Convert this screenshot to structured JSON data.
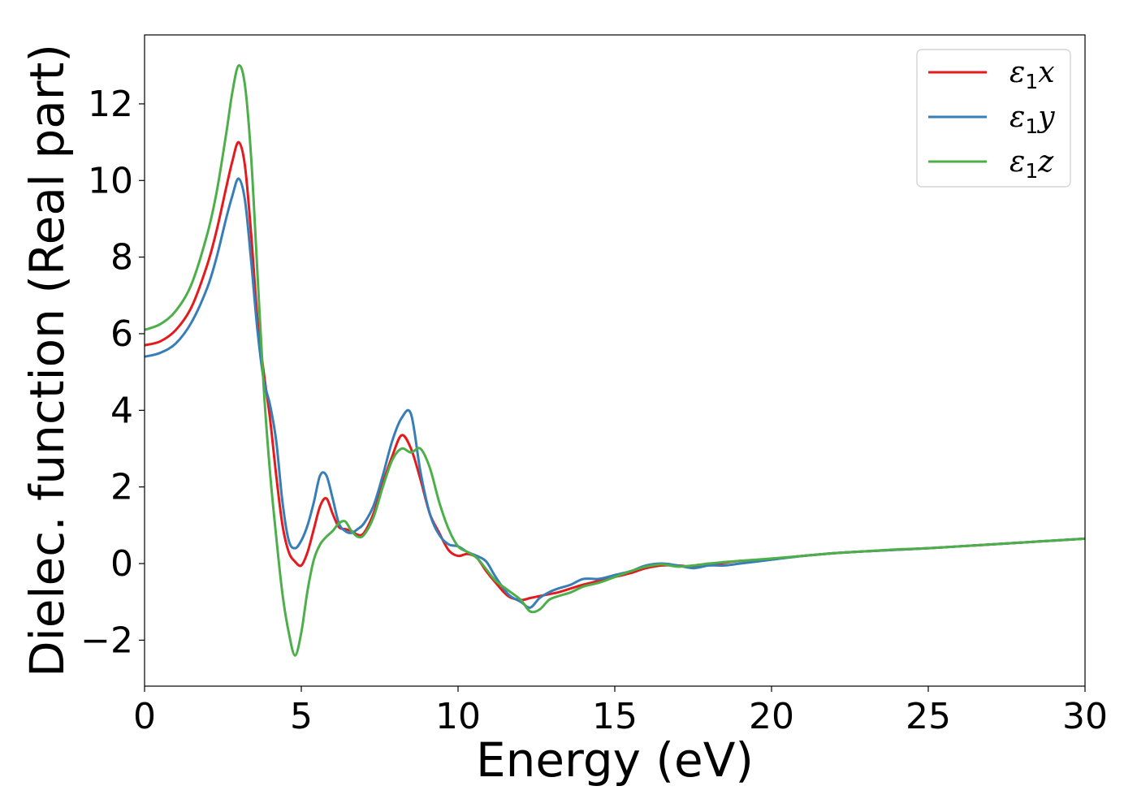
{
  "chart_data": {
    "type": "line",
    "title": "",
    "xlabel": "Energy (eV)",
    "ylabel": "Dielec. function (Real part)",
    "xlim": [
      0,
      30
    ],
    "ylim": [
      -3.2,
      13.8
    ],
    "xticks": [
      0,
      5,
      10,
      15,
      20,
      25,
      30
    ],
    "xtick_labels": [
      "0",
      "5",
      "10",
      "15",
      "20",
      "25",
      "30"
    ],
    "yticks": [
      -2,
      0,
      2,
      4,
      6,
      8,
      10,
      12
    ],
    "ytick_labels": [
      "−2",
      "0",
      "2",
      "4",
      "6",
      "8",
      "10",
      "12"
    ],
    "grid": false,
    "legend_position": "top-right",
    "series": [
      {
        "name": "ε1x",
        "legend_symbol": "ε",
        "legend_subscript": "1",
        "legend_suffix": "x",
        "color": "#e41a1c",
        "x": [
          0,
          0.5,
          1.0,
          1.5,
          2.0,
          2.3,
          2.6,
          2.8,
          3.0,
          3.2,
          3.4,
          3.6,
          3.8,
          4.0,
          4.2,
          4.4,
          4.6,
          4.8,
          5.0,
          5.2,
          5.4,
          5.6,
          5.8,
          6.0,
          6.2,
          6.4,
          6.6,
          6.8,
          7.0,
          7.3,
          7.6,
          7.9,
          8.2,
          8.5,
          8.8,
          9.1,
          9.4,
          9.7,
          10.0,
          10.3,
          10.6,
          10.9,
          11.2,
          11.6,
          12.0,
          12.3,
          12.6,
          12.9,
          13.2,
          13.6,
          14.0,
          14.5,
          15.0,
          15.5,
          16.0,
          16.5,
          17.0,
          17.5,
          18.0,
          18.5,
          19.0,
          20.0,
          21.0,
          22.0,
          23.0,
          24.0,
          25.0,
          26.0,
          27.0,
          28.0,
          29.0,
          30.0
        ],
        "values": [
          5.7,
          5.8,
          6.1,
          6.7,
          7.8,
          8.7,
          9.8,
          10.5,
          11.0,
          10.4,
          8.6,
          6.4,
          5.0,
          3.8,
          2.3,
          1.0,
          0.3,
          0.05,
          -0.05,
          0.3,
          0.9,
          1.5,
          1.7,
          1.3,
          0.95,
          0.9,
          0.85,
          0.75,
          0.8,
          1.3,
          2.1,
          2.8,
          3.35,
          3.0,
          2.2,
          1.3,
          0.8,
          0.35,
          0.2,
          0.25,
          0.15,
          -0.2,
          -0.5,
          -0.85,
          -0.95,
          -0.9,
          -0.85,
          -0.8,
          -0.75,
          -0.65,
          -0.55,
          -0.45,
          -0.35,
          -0.25,
          -0.12,
          -0.05,
          -0.05,
          -0.08,
          -0.03,
          0.02,
          0.07,
          0.12,
          0.2,
          0.27,
          0.32,
          0.36,
          0.4,
          0.45,
          0.5,
          0.55,
          0.6,
          0.65
        ]
      },
      {
        "name": "ε1y",
        "legend_symbol": "ε",
        "legend_subscript": "1",
        "legend_suffix": "y",
        "color": "#377eb8",
        "x": [
          0,
          0.5,
          1.0,
          1.5,
          2.0,
          2.3,
          2.6,
          2.8,
          3.0,
          3.2,
          3.4,
          3.6,
          3.8,
          4.0,
          4.2,
          4.4,
          4.6,
          4.8,
          5.0,
          5.2,
          5.4,
          5.6,
          5.8,
          6.0,
          6.2,
          6.4,
          6.6,
          6.8,
          7.0,
          7.3,
          7.6,
          7.9,
          8.2,
          8.5,
          8.8,
          9.1,
          9.4,
          9.7,
          10.0,
          10.3,
          10.6,
          10.9,
          11.2,
          11.6,
          12.0,
          12.3,
          12.6,
          12.9,
          13.2,
          13.6,
          14.0,
          14.5,
          15.0,
          15.5,
          16.0,
          16.5,
          17.0,
          17.5,
          18.0,
          18.5,
          19.0,
          20.0,
          21.0,
          22.0,
          23.0,
          24.0,
          25.0,
          26.0,
          27.0,
          28.0,
          29.0,
          30.0
        ],
        "values": [
          5.4,
          5.5,
          5.75,
          6.3,
          7.2,
          8.0,
          9.0,
          9.6,
          10.05,
          9.5,
          7.9,
          6.1,
          4.8,
          4.15,
          3.2,
          1.6,
          0.6,
          0.4,
          0.6,
          1.0,
          1.6,
          2.3,
          2.3,
          1.7,
          1.05,
          0.85,
          0.8,
          0.9,
          1.05,
          1.5,
          2.3,
          3.2,
          3.8,
          3.9,
          2.4,
          1.3,
          0.75,
          0.5,
          0.45,
          0.3,
          0.2,
          0.05,
          -0.35,
          -0.8,
          -1.0,
          -1.15,
          -0.9,
          -0.75,
          -0.65,
          -0.55,
          -0.4,
          -0.4,
          -0.3,
          -0.2,
          -0.05,
          0.0,
          -0.05,
          -0.12,
          -0.05,
          -0.05,
          0.0,
          0.1,
          0.2,
          0.27,
          0.32,
          0.36,
          0.4,
          0.45,
          0.5,
          0.55,
          0.6,
          0.65
        ]
      },
      {
        "name": "ε1z",
        "legend_symbol": "ε",
        "legend_subscript": "1",
        "legend_suffix": "z",
        "color": "#4daf4a",
        "x": [
          0,
          0.5,
          1.0,
          1.5,
          2.0,
          2.3,
          2.6,
          2.8,
          3.0,
          3.2,
          3.4,
          3.6,
          3.8,
          4.0,
          4.2,
          4.4,
          4.6,
          4.8,
          5.0,
          5.2,
          5.4,
          5.6,
          5.8,
          6.0,
          6.2,
          6.4,
          6.6,
          6.8,
          7.0,
          7.3,
          7.6,
          7.9,
          8.2,
          8.5,
          8.8,
          9.1,
          9.4,
          9.7,
          10.0,
          10.3,
          10.6,
          10.9,
          11.2,
          11.6,
          12.0,
          12.3,
          12.6,
          12.9,
          13.2,
          13.6,
          14.0,
          14.5,
          15.0,
          15.5,
          16.0,
          16.5,
          17.0,
          17.5,
          18.0,
          18.5,
          19.0,
          20.0,
          21.0,
          22.0,
          23.0,
          24.0,
          25.0,
          26.0,
          27.0,
          28.0,
          29.0,
          30.0
        ],
        "values": [
          6.1,
          6.25,
          6.6,
          7.3,
          8.6,
          9.7,
          11.2,
          12.3,
          13.0,
          12.5,
          10.6,
          7.6,
          4.6,
          2.4,
          0.7,
          -0.8,
          -1.8,
          -2.4,
          -1.8,
          -0.7,
          0.1,
          0.5,
          0.7,
          0.85,
          1.05,
          1.1,
          0.85,
          0.7,
          0.75,
          1.2,
          2.0,
          2.7,
          3.0,
          2.9,
          3.0,
          2.5,
          1.6,
          0.9,
          0.45,
          0.3,
          0.15,
          -0.15,
          -0.45,
          -0.7,
          -0.95,
          -1.25,
          -1.2,
          -0.95,
          -0.85,
          -0.75,
          -0.6,
          -0.5,
          -0.35,
          -0.2,
          -0.08,
          -0.02,
          -0.08,
          -0.05,
          0.0,
          0.04,
          0.07,
          0.13,
          0.2,
          0.27,
          0.32,
          0.37,
          0.4,
          0.45,
          0.5,
          0.55,
          0.6,
          0.65
        ]
      }
    ]
  }
}
